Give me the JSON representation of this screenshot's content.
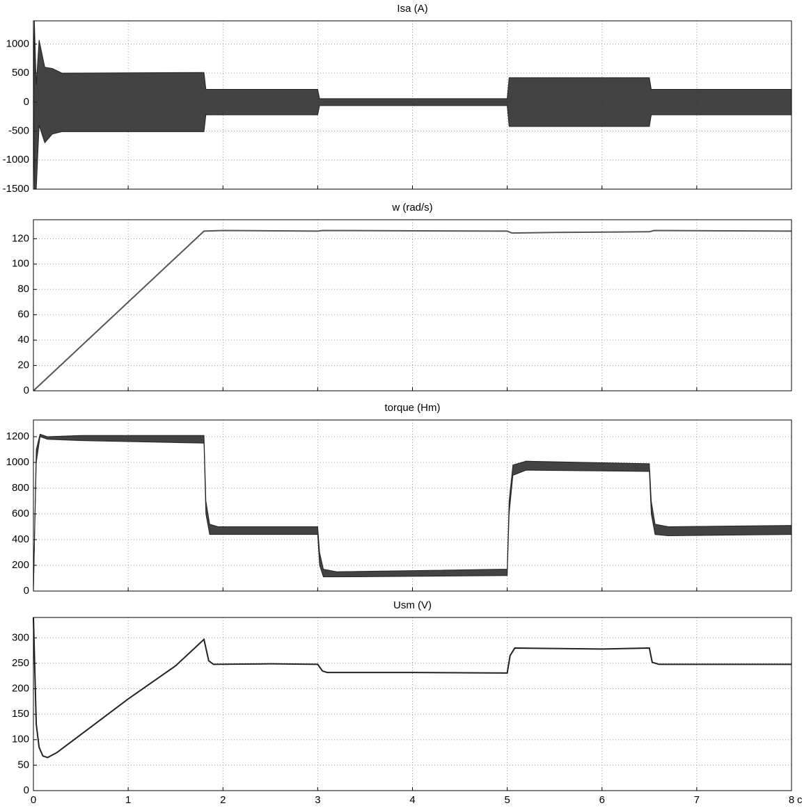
{
  "chart_data": [
    {
      "type": "band",
      "title": "Isa (A)",
      "grid": true,
      "show_xtick_labels": false,
      "x": [
        0,
        0.01,
        0.03,
        0.06,
        0.12,
        0.2,
        0.3,
        1.8,
        1.82,
        3.0,
        3.02,
        5.0,
        5.02,
        6.5,
        6.52,
        8
      ],
      "series": [
        {
          "color": "#222222",
          "values": [
            0,
            1400,
            300,
            1070,
            600,
            580,
            500,
            510,
            220,
            220,
            60,
            60,
            420,
            420,
            220,
            220
          ]
        },
        {
          "color": "#222222",
          "values": [
            0,
            -1500,
            -1500,
            -400,
            -700,
            -550,
            -510,
            -510,
            -220,
            -220,
            -60,
            -60,
            -420,
            -420,
            -220,
            -220
          ]
        }
      ],
      "xlim": [
        0,
        8
      ],
      "xticks": [
        0,
        1,
        2,
        3,
        4,
        5,
        6,
        7,
        8
      ],
      "ylim": [
        -1500,
        1400
      ],
      "yticks": [
        -1500,
        -1000,
        -500,
        0,
        500,
        1000
      ]
    },
    {
      "type": "line",
      "title": "w (rad/s)",
      "grid": true,
      "show_xtick_labels": false,
      "x": [
        0,
        1.8,
        2.0,
        3.0,
        3.05,
        5.0,
        5.05,
        5.5,
        6.5,
        6.55,
        8
      ],
      "series": [
        {
          "color": "#555555",
          "values": [
            0,
            126,
            126.5,
            126,
            126.5,
            126,
            124.5,
            125,
            125.5,
            126.5,
            126
          ]
        }
      ],
      "xlim": [
        0,
        8
      ],
      "xticks": [
        0,
        1,
        2,
        3,
        4,
        5,
        6,
        7,
        8
      ],
      "ylim": [
        0,
        135
      ],
      "yticks": [
        0,
        20,
        40,
        60,
        80,
        100,
        120
      ]
    },
    {
      "type": "band",
      "title": "torque (Hm)",
      "grid": true,
      "show_xtick_labels": false,
      "x": [
        0,
        0.03,
        0.07,
        0.15,
        0.5,
        1.8,
        1.82,
        1.86,
        1.95,
        3.0,
        3.02,
        3.06,
        3.2,
        5.0,
        5.02,
        5.06,
        5.2,
        6.5,
        6.52,
        6.56,
        6.7,
        8
      ],
      "series": [
        {
          "color": "#222222",
          "values": [
            0,
            1100,
            1220,
            1200,
            1210,
            1210,
            700,
            520,
            500,
            500,
            300,
            170,
            150,
            170,
            700,
            980,
            1010,
            990,
            700,
            520,
            500,
            510
          ]
        },
        {
          "color": "#222222",
          "values": [
            0,
            1000,
            1200,
            1180,
            1170,
            1150,
            600,
            440,
            440,
            440,
            200,
            110,
            110,
            120,
            600,
            900,
            940,
            930,
            600,
            440,
            430,
            440
          ]
        }
      ],
      "xlim": [
        0,
        8
      ],
      "xticks": [
        0,
        1,
        2,
        3,
        4,
        5,
        6,
        7,
        8
      ],
      "ylim": [
        0,
        1330
      ],
      "yticks": [
        0,
        200,
        400,
        600,
        800,
        1000,
        1200
      ]
    },
    {
      "type": "line",
      "title": "Usm (V)",
      "grid": true,
      "show_xtick_labels": true,
      "xlabel": "c",
      "x": [
        0,
        0.03,
        0.06,
        0.1,
        0.15,
        0.25,
        0.5,
        1.0,
        1.5,
        1.8,
        1.85,
        1.9,
        2.5,
        3.0,
        3.05,
        3.1,
        4,
        5.0,
        5.03,
        5.08,
        6,
        6.5,
        6.53,
        6.6,
        7,
        8
      ],
      "series": [
        {
          "color": "#222222",
          "values": [
            340,
            130,
            85,
            68,
            65,
            75,
            110,
            180,
            245,
            297,
            255,
            248,
            249,
            248,
            235,
            232,
            232,
            231,
            265,
            280,
            278,
            280,
            252,
            248,
            248,
            248
          ]
        }
      ],
      "xlim": [
        0,
        8
      ],
      "xticks": [
        0,
        1,
        2,
        3,
        4,
        5,
        6,
        7,
        8
      ],
      "ylim": [
        0,
        340
      ],
      "yticks": [
        0,
        50,
        100,
        150,
        200,
        250,
        300
      ]
    }
  ]
}
